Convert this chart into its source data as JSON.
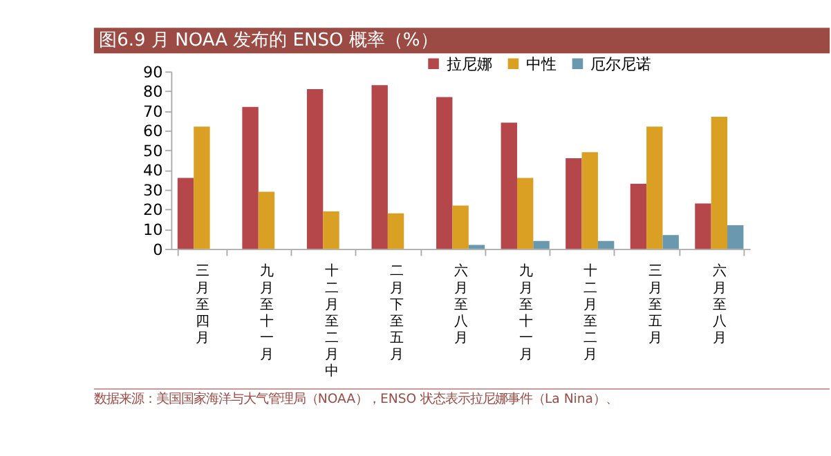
{
  "chart_data": {
    "type": "bar",
    "title": "图6.9 月 NOAA 发布的 ENSO 概率（%）",
    "categories": [
      "三月至四月",
      "九月至十一月",
      "十二月至二月中",
      "二月下至五月",
      "六月至八月",
      "九月至十一月",
      "十二月至二月",
      "三月至五月",
      "六月至八月"
    ],
    "series": [
      {
        "name": "拉尼娜",
        "color": "#b5474a",
        "values": [
          36,
          72,
          81,
          83,
          77,
          64,
          46,
          33,
          23
        ]
      },
      {
        "name": "中性",
        "color": "#daa024",
        "values": [
          62,
          29,
          19,
          18,
          22,
          36,
          49,
          62,
          67
        ]
      },
      {
        "name": "厄尔尼诺",
        "color": "#6a98ae",
        "values": [
          null,
          null,
          null,
          null,
          2,
          4,
          4,
          7,
          12
        ]
      }
    ],
    "ylim": [
      0,
      90
    ],
    "yticks": [
      0,
      10,
      20,
      30,
      40,
      50,
      60,
      70,
      80,
      90
    ],
    "grid": false,
    "legend": "top",
    "annotations": [
      "数据来源：美国国家海洋与大气管理局（NOAA），ENSO 状态表示拉尼娜事件（La Nina）、"
    ]
  }
}
